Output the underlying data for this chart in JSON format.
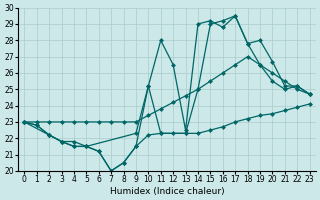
{
  "bg_color": "#cce8e8",
  "grid_color": "#aacccc",
  "line_color": "#006666",
  "xlabel": "Humidex (Indice chaleur)",
  "xlim": [
    -0.5,
    23.5
  ],
  "ylim": [
    20,
    30
  ],
  "yticks": [
    20,
    21,
    22,
    23,
    24,
    25,
    26,
    27,
    28,
    29,
    30
  ],
  "xticks": [
    0,
    1,
    2,
    3,
    4,
    5,
    6,
    7,
    8,
    9,
    10,
    11,
    12,
    13,
    14,
    15,
    16,
    17,
    18,
    19,
    20,
    21,
    22,
    23
  ],
  "lineA_x": [
    0,
    1,
    2,
    3,
    4,
    5,
    6,
    7,
    8,
    9,
    10,
    11,
    12,
    13,
    14,
    15,
    16,
    17,
    18,
    19,
    20,
    21,
    22,
    23
  ],
  "lineA_y": [
    23,
    22.8,
    22.2,
    21.8,
    21.5,
    21.5,
    21.2,
    20.0,
    20.5,
    21.5,
    25.2,
    28.0,
    26.5,
    22.5,
    29.0,
    29.2,
    28.8,
    29.5,
    27.8,
    26.5,
    25.5,
    25.0,
    25.2,
    24.7
  ],
  "lineB_x": [
    0,
    2,
    3,
    4,
    5,
    9,
    10,
    11,
    13,
    14,
    15,
    16,
    17,
    18,
    19,
    20,
    21,
    22,
    23
  ],
  "lineB_y": [
    23,
    22.2,
    21.8,
    21.8,
    21.5,
    22.3,
    25.2,
    22.3,
    22.3,
    25.0,
    29.0,
    29.2,
    29.5,
    27.8,
    28.0,
    26.7,
    25.2,
    25.2,
    24.7
  ],
  "lineC_x": [
    0,
    1,
    2,
    3,
    4,
    5,
    6,
    7,
    8,
    9,
    10,
    11,
    12,
    13,
    14,
    15,
    16,
    17,
    18,
    19,
    20,
    21,
    22,
    23
  ],
  "lineC_y": [
    23,
    23.0,
    23.0,
    23.0,
    23.0,
    23.0,
    23.0,
    23.0,
    23.0,
    23.0,
    23.4,
    23.8,
    24.2,
    24.6,
    25.0,
    25.5,
    26.0,
    26.5,
    27.0,
    26.5,
    26.0,
    25.5,
    25.0,
    24.7
  ],
  "lineD_x": [
    0,
    1,
    2,
    3,
    4,
    5,
    6,
    7,
    8,
    9,
    10,
    11,
    12,
    13,
    14,
    15,
    16,
    17,
    18,
    19,
    20,
    21,
    22,
    23
  ],
  "lineD_y": [
    23,
    22.8,
    22.2,
    21.8,
    21.5,
    21.5,
    21.2,
    20.0,
    20.5,
    21.5,
    22.2,
    22.3,
    22.3,
    22.3,
    22.3,
    22.5,
    22.7,
    23.0,
    23.2,
    23.4,
    23.5,
    23.7,
    23.9,
    24.1
  ]
}
